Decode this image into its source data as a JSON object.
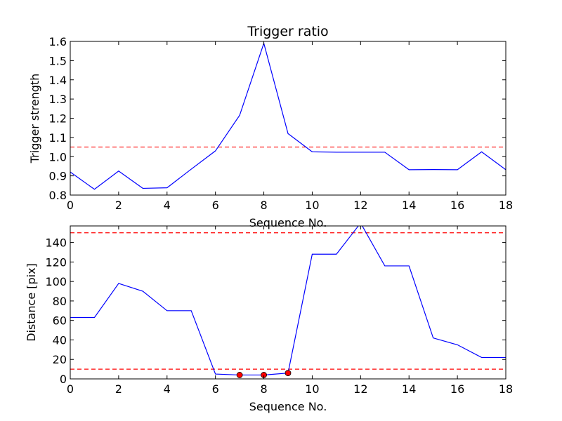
{
  "colors": {
    "line": "#0000ff",
    "threshold": "#ff0000",
    "marker_fill": "#ff0000",
    "axis": "#000000"
  },
  "chart_data": [
    {
      "type": "line",
      "title": "Trigger ratio",
      "xlabel": "Sequence No.",
      "ylabel": "Trigger strength",
      "xlim": [
        0,
        18
      ],
      "ylim": [
        0.8,
        1.6
      ],
      "xticks": [
        "0",
        "2",
        "4",
        "6",
        "8",
        "10",
        "12",
        "14",
        "16",
        "18"
      ],
      "yticks": [
        "0.8",
        "0.9",
        "1.0",
        "1.1",
        "1.2",
        "1.3",
        "1.4",
        "1.5",
        "1.6"
      ],
      "series": [
        {
          "x": [
            0,
            1,
            2,
            3,
            4,
            5,
            6,
            7,
            8,
            9,
            10,
            11,
            12,
            13,
            14,
            15,
            16,
            17,
            18
          ],
          "values": [
            0.92,
            0.83,
            0.925,
            0.835,
            0.838,
            0.935,
            1.03,
            1.215,
            1.59,
            1.12,
            1.025,
            1.023,
            1.023,
            1.023,
            0.932,
            0.933,
            0.932,
            1.025,
            0.932
          ]
        }
      ],
      "thresholds": [
        1.05
      ],
      "markers": []
    },
    {
      "type": "line",
      "title": "",
      "xlabel": "Sequence No.",
      "ylabel": "Distance [pix]",
      "xlim": [
        0,
        18
      ],
      "ylim": [
        0,
        157
      ],
      "xticks": [
        "0",
        "2",
        "4",
        "6",
        "8",
        "10",
        "12",
        "14",
        "16",
        "18"
      ],
      "yticks": [
        "0",
        "20",
        "40",
        "60",
        "80",
        "100",
        "120",
        "140"
      ],
      "series": [
        {
          "x": [
            0,
            1,
            2,
            3,
            4,
            5,
            6,
            7,
            8,
            9,
            10,
            11,
            12,
            13,
            14,
            15,
            16,
            17,
            18
          ],
          "values": [
            63,
            63,
            98,
            90,
            70,
            70,
            5,
            4,
            4,
            6,
            128,
            128,
            160,
            116,
            116,
            42,
            35,
            22,
            22
          ]
        }
      ],
      "thresholds": [
        150,
        10
      ],
      "markers": [
        {
          "x": 7,
          "y": 4
        },
        {
          "x": 8,
          "y": 4
        },
        {
          "x": 9,
          "y": 6
        }
      ]
    }
  ]
}
